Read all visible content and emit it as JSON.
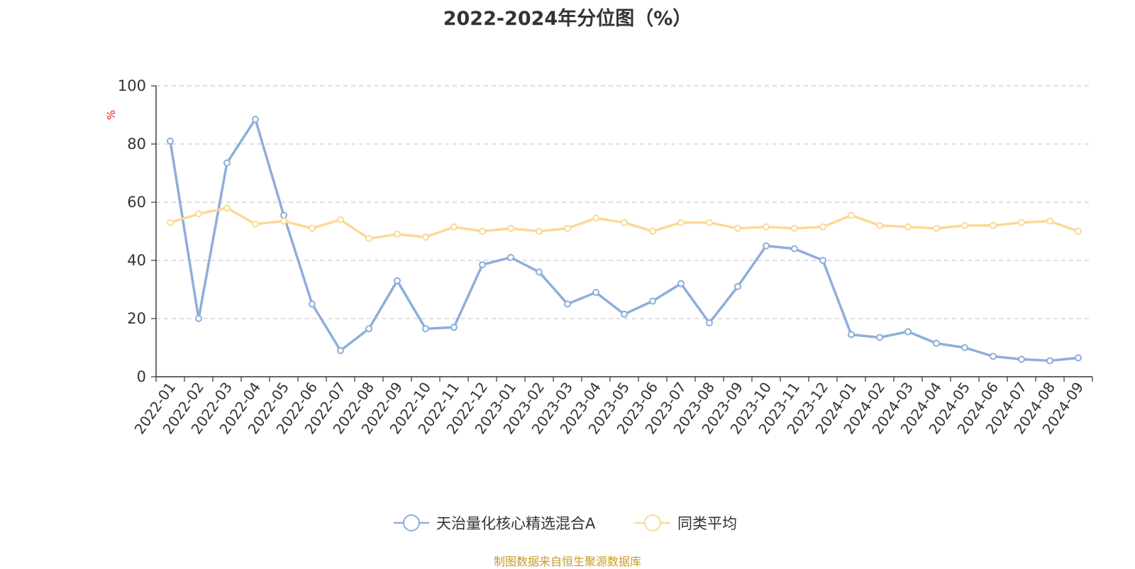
{
  "source_note": "制图数据来自恒生聚源数据库",
  "colors": {
    "series_a": "#8eaedb",
    "series_b": "#fbd995",
    "axis": "#333333",
    "grid": "#cccccc",
    "unit": "#e01b1b",
    "text": "#333333"
  },
  "chart_data": {
    "type": "line",
    "title": "2022-2024年分位图（%）",
    "ylabel": "%",
    "ylim": [
      0,
      100
    ],
    "yticks": [
      "0",
      "20",
      "40",
      "60",
      "80",
      "100"
    ],
    "grid": "horizontal dashed",
    "legend_position": "bottom-center",
    "categories": [
      "2022-01",
      "2022-02",
      "2022-03",
      "2022-04",
      "2022-05",
      "2022-06",
      "2022-07",
      "2022-08",
      "2022-09",
      "2022-10",
      "2022-11",
      "2022-12",
      "2023-01",
      "2023-02",
      "2023-03",
      "2023-04",
      "2023-05",
      "2023-06",
      "2023-07",
      "2023-08",
      "2023-09",
      "2023-10",
      "2023-11",
      "2023-12",
      "2024-01",
      "2024-02",
      "2024-03",
      "2024-04",
      "2024-05",
      "2024-06",
      "2024-07",
      "2024-08",
      "2024-09"
    ],
    "series": [
      {
        "name": "天治量化核心精选混合A",
        "color": "#8eaedb",
        "values": [
          81,
          20,
          73.5,
          88.5,
          55.5,
          25,
          9,
          16.5,
          33,
          16.5,
          17,
          38.5,
          41,
          36,
          25,
          29,
          21.5,
          26,
          32,
          18.5,
          31,
          45,
          44,
          40,
          14.5,
          13.5,
          15.5,
          11.5,
          10,
          7,
          6,
          5.5,
          6.5
        ]
      },
      {
        "name": "同类平均",
        "color": "#fbd995",
        "values": [
          53,
          56,
          58,
          52.5,
          53.5,
          51,
          54,
          47.5,
          49,
          48,
          51.5,
          50,
          51,
          50,
          51,
          54.5,
          53,
          50,
          53,
          53,
          51,
          51.5,
          51,
          51.5,
          55.5,
          52,
          51.5,
          51,
          52,
          52,
          53,
          53.5,
          50
        ]
      }
    ]
  }
}
